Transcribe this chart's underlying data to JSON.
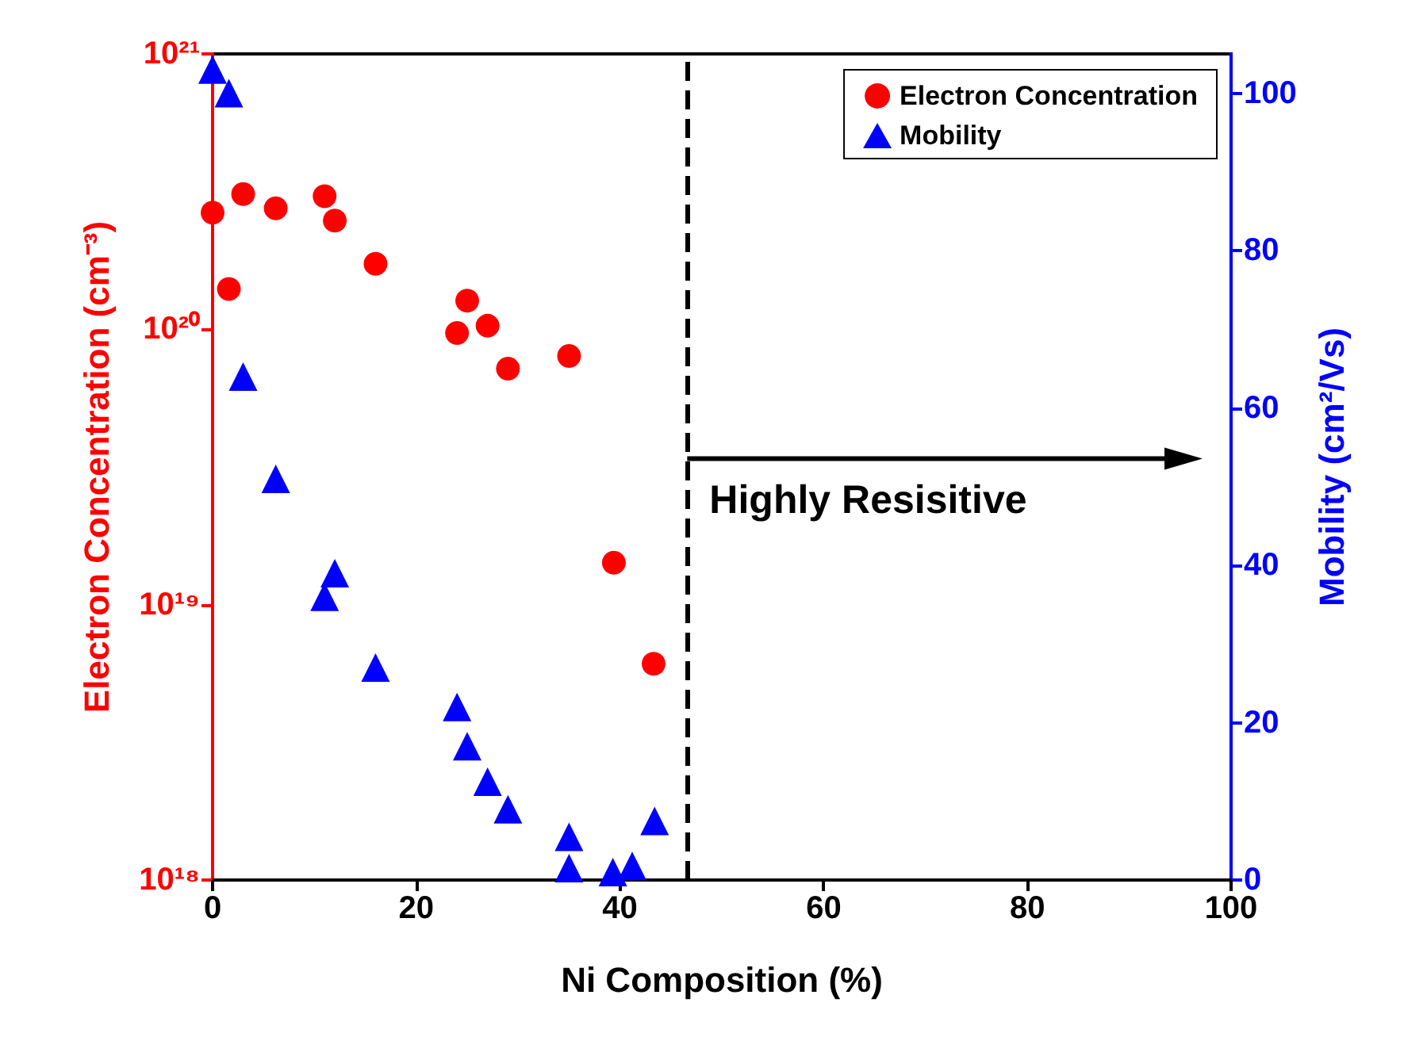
{
  "chart_data": {
    "type": "scatter",
    "xlabel": "Ni Composition (%)",
    "ylabel": "Electron Concentration (cm⁻³)",
    "y2label": "Mobility (cm²/Vs)",
    "xlim": [
      0,
      100
    ],
    "xticks": [
      0,
      20,
      40,
      60,
      80,
      100
    ],
    "ylim": [
      1e+18,
      1e+21
    ],
    "yticks": [
      {
        "value": 1e+18,
        "label": "10¹⁸"
      },
      {
        "value": 1e+19,
        "label": "10¹⁹"
      },
      {
        "value": 1e+20,
        "label": "10²⁰"
      },
      {
        "value": 1e+21,
        "label": "10²¹"
      }
    ],
    "y2lim": [
      0,
      105
    ],
    "y2ticks": [
      0,
      20,
      40,
      60,
      80,
      100
    ],
    "log": "y",
    "grid": false,
    "legend": "top right",
    "series": [
      {
        "name": "Electron Concentration",
        "color": "#ff0000",
        "marker": "circle",
        "x": [
          0,
          1.6,
          3,
          6.2,
          11,
          12,
          16,
          24,
          25,
          27,
          29,
          35,
          39.4,
          43.3
        ],
        "values": [
          2.65e+20,
          1.4e+20,
          3.1e+20,
          2.75e+20,
          3.04e+20,
          2.48e+20,
          1.73e+20,
          9.7e+19,
          1.27e+20,
          1.03e+20,
          7.2e+19,
          8e+19,
          1.42e+19,
          6.1e+18
        ]
      },
      {
        "name": "Mobility",
        "color": "#0000ff",
        "marker": "triangle",
        "axis": "y2",
        "x": [
          0,
          1.6,
          3,
          6.2,
          11,
          12,
          16,
          24,
          25,
          27,
          29,
          35,
          35,
          39.3,
          41.2,
          43.4
        ],
        "values": [
          103,
          100,
          64,
          51,
          36,
          39,
          27,
          22,
          17,
          12.5,
          9,
          5.5,
          1.5,
          1,
          1.8,
          7.5
        ]
      }
    ],
    "ref_lines": [
      {
        "axis": "x",
        "value": 46.6,
        "color": "#000000",
        "line_style": "dashed"
      }
    ],
    "annotations": [
      "Highly Resisitive"
    ]
  }
}
